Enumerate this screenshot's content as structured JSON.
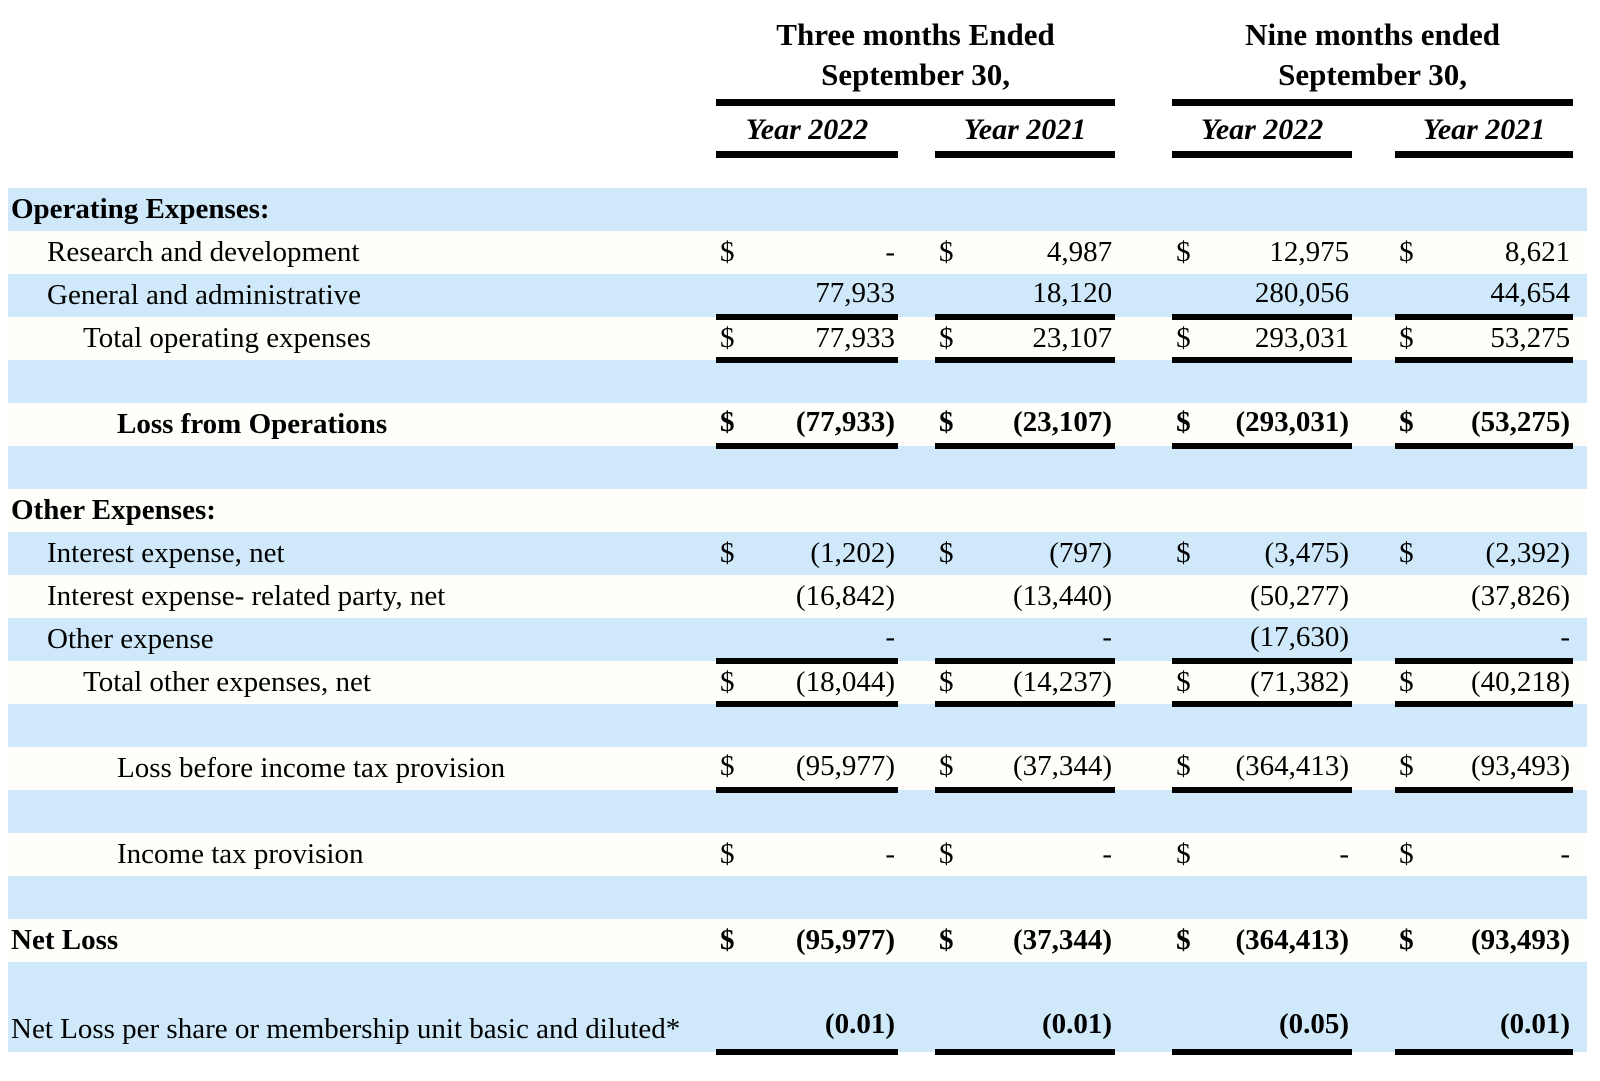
{
  "currency_symbol": "$",
  "header": {
    "groups": [
      {
        "line1": "Three months Ended",
        "line2": "September 30,"
      },
      {
        "line1": "Nine months ended",
        "line2": "September 30,"
      }
    ],
    "periods": [
      "Year 2022",
      "Year 2021",
      "Year 2022",
      "Year 2021"
    ]
  },
  "colors": {
    "stripe_blue": "#cfe9fa",
    "stripe_white": "#fffefa",
    "rule_black": "#000000"
  },
  "rows": [
    {
      "label": "Operating Expenses:",
      "indent": 0,
      "bold": true,
      "dollar": false,
      "underline": false,
      "values": [
        "",
        "",
        "",
        ""
      ]
    },
    {
      "label": "Research and development",
      "indent": 1,
      "bold": false,
      "dollar": true,
      "underline": false,
      "values": [
        "-",
        "4,987",
        "12,975",
        "8,621"
      ]
    },
    {
      "label": "General and administrative",
      "indent": 1,
      "bold": false,
      "dollar": false,
      "underline": true,
      "values": [
        "77,933",
        "18,120",
        "280,056",
        "44,654"
      ]
    },
    {
      "label": "Total operating expenses",
      "indent": 2,
      "bold": false,
      "dollar": true,
      "underline": true,
      "values": [
        "77,933",
        "23,107",
        "293,031",
        "53,275"
      ]
    },
    {
      "label": "",
      "blank": true
    },
    {
      "label": "Loss from Operations",
      "indent": 3,
      "bold": true,
      "dollar": true,
      "underline": true,
      "values": [
        "(77,933)",
        "(23,107)",
        "(293,031)",
        "(53,275)"
      ]
    },
    {
      "label": "",
      "blank": true
    },
    {
      "label": "Other Expenses:",
      "indent": 0,
      "bold": true,
      "dollar": false,
      "underline": false,
      "values": [
        "",
        "",
        "",
        ""
      ]
    },
    {
      "label": "Interest expense, net",
      "indent": 1,
      "bold": false,
      "dollar": true,
      "underline": false,
      "values": [
        "(1,202)",
        "(797)",
        "(3,475)",
        "(2,392)"
      ]
    },
    {
      "label": "Interest expense- related party, net",
      "indent": 1,
      "bold": false,
      "dollar": false,
      "underline": false,
      "values": [
        "(16,842)",
        "(13,440)",
        "(50,277)",
        "(37,826)"
      ]
    },
    {
      "label": "Other expense",
      "indent": 1,
      "bold": false,
      "dollar": false,
      "underline": true,
      "values": [
        "-",
        "-",
        "(17,630)",
        "-"
      ]
    },
    {
      "label": "Total other expenses, net",
      "indent": 2,
      "bold": false,
      "dollar": true,
      "underline": true,
      "values": [
        "(18,044)",
        "(14,237)",
        "(71,382)",
        "(40,218)"
      ]
    },
    {
      "label": "",
      "blank": true
    },
    {
      "label": "Loss before income tax provision",
      "indent": 3,
      "bold": false,
      "dollar": true,
      "underline": true,
      "values": [
        "(95,977)",
        "(37,344)",
        "(364,413)",
        "(93,493)"
      ]
    },
    {
      "label": "",
      "blank": true
    },
    {
      "label": "Income tax provision",
      "indent": 3,
      "bold": false,
      "dollar": true,
      "underline": false,
      "values": [
        "-",
        "-",
        "-",
        "-"
      ]
    },
    {
      "label": "",
      "blank": true
    },
    {
      "label": "Net Loss",
      "indent": 0,
      "bold": true,
      "dollar": true,
      "underline": false,
      "values": [
        "(95,977)",
        "(37,344)",
        "(364,413)",
        "(93,493)"
      ]
    },
    {
      "label": "Net Loss per share or membership unit basic and diluted*",
      "indent": 0,
      "bold": false,
      "bold_values": true,
      "dollar": false,
      "underline": true,
      "tall": true,
      "values": [
        "(0.01)",
        "(0.01)",
        "(0.05)",
        "(0.01)"
      ]
    }
  ]
}
